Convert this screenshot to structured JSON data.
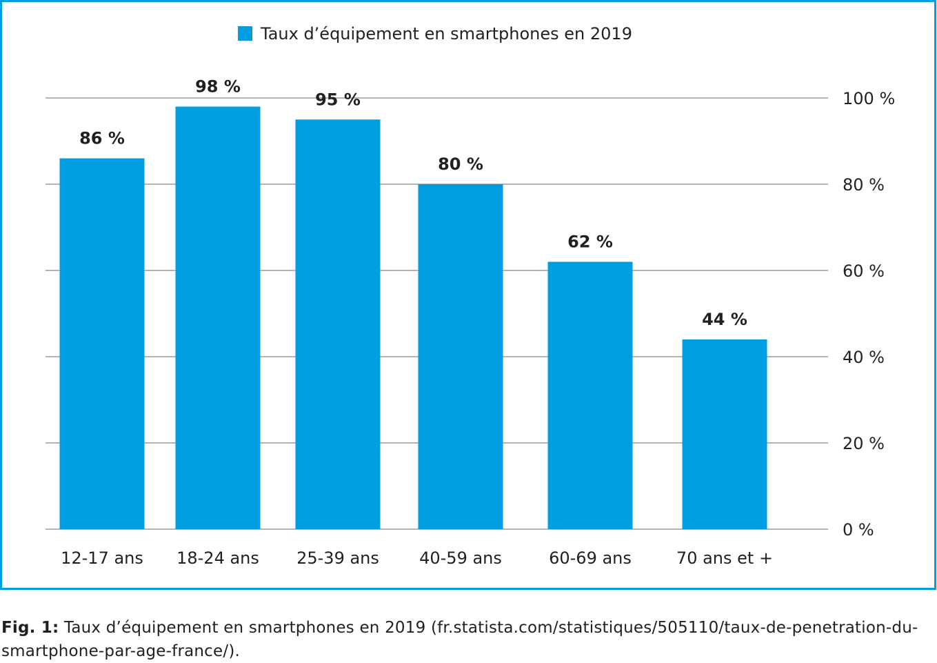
{
  "chart_data": {
    "type": "bar",
    "categories": [
      "12-17 ans",
      "18-24 ans",
      "25-39 ans",
      "40-59 ans",
      "60-69 ans",
      "70 ans et +"
    ],
    "series": [
      {
        "name": "Taux d’équipement en smartphones en 2019",
        "values": [
          86,
          98,
          95,
          80,
          62,
          44
        ]
      }
    ],
    "data_labels": [
      "86 %",
      "98 %",
      "95 %",
      "80 %",
      "62 %",
      "44 %"
    ],
    "y_ticks": [
      0,
      20,
      40,
      60,
      80,
      100
    ],
    "y_tick_labels": [
      "0 %",
      "20 %",
      "40 %",
      "60 %",
      "80 %",
      "100 %"
    ],
    "y_axis_side": "right",
    "ylim": [
      0,
      100
    ],
    "grid": true,
    "legend_position": "top-center",
    "title": "",
    "xlabel": "",
    "ylabel": ""
  },
  "colors": {
    "bar": "#009de0",
    "frame": "#009de0",
    "grid": "#b3b3b3",
    "text": "#231f20"
  },
  "caption": {
    "label": "Fig. 1:",
    "text": " Taux d’équipement en smartphones en 2019 (fr.statista.com/statistiques/505110/taux-de-penetration-du-smartphone-par-age-france/)."
  }
}
